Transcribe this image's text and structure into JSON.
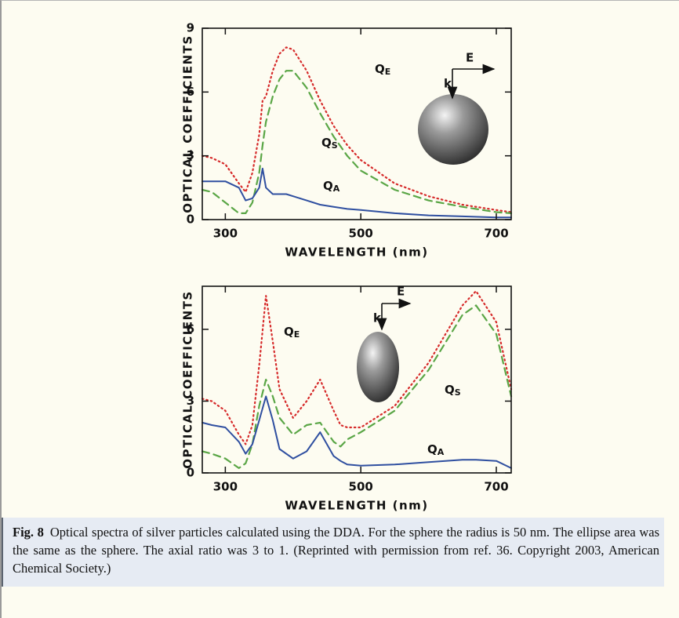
{
  "chart_data": [
    {
      "type": "line",
      "x": [
        266,
        280,
        300,
        320,
        330,
        340,
        350,
        355,
        360,
        370,
        380,
        390,
        400,
        420,
        440,
        460,
        480,
        500,
        550,
        600,
        650,
        700,
        722
      ],
      "series": [
        {
          "name": "QE",
          "color": "#d62a2a",
          "style": "dotted",
          "values": [
            3.0,
            2.9,
            2.6,
            1.7,
            1.3,
            2.2,
            4.0,
            5.6,
            5.8,
            7.0,
            7.8,
            8.1,
            8.0,
            7.0,
            5.6,
            4.4,
            3.5,
            2.8,
            1.7,
            1.1,
            0.7,
            0.45,
            0.35
          ]
        },
        {
          "name": "QS",
          "color": "#5aa646",
          "style": "dashed",
          "values": [
            1.4,
            1.3,
            0.8,
            0.3,
            0.3,
            0.8,
            2.2,
            3.5,
            4.6,
            5.8,
            6.6,
            7.0,
            7.0,
            6.2,
            5.0,
            3.9,
            3.0,
            2.3,
            1.4,
            0.9,
            0.6,
            0.35,
            0.3
          ]
        },
        {
          "name": "QA",
          "color": "#2f4fa0",
          "style": "solid",
          "values": [
            1.8,
            1.8,
            1.8,
            1.5,
            0.9,
            1.0,
            1.5,
            2.4,
            1.5,
            1.2,
            1.2,
            1.2,
            1.1,
            0.9,
            0.7,
            0.6,
            0.5,
            0.45,
            0.3,
            0.2,
            0.15,
            0.1,
            0.1
          ]
        }
      ],
      "xlim": [
        266,
        722
      ],
      "ylim": [
        0,
        9
      ],
      "xticks": [
        300,
        500,
        700
      ],
      "yticks": [
        0,
        3,
        6,
        9
      ],
      "x_label": "WAVELENGTH (nm)",
      "y_label": "OPTICAL COEFFICIENTS",
      "annotations": {
        "field": "E",
        "wavevector": "k"
      }
    },
    {
      "type": "line",
      "x": [
        266,
        280,
        300,
        320,
        330,
        340,
        350,
        360,
        370,
        380,
        400,
        420,
        440,
        460,
        470,
        480,
        500,
        550,
        600,
        650,
        670,
        700,
        722
      ],
      "series": [
        {
          "name": "QE",
          "color": "#d62a2a",
          "style": "dotted",
          "values": [
            3.1,
            3.0,
            2.6,
            1.6,
            1.2,
            2.0,
            4.5,
            7.4,
            5.5,
            3.5,
            2.3,
            3.0,
            3.9,
            2.6,
            2.0,
            1.9,
            1.9,
            2.8,
            4.6,
            7.0,
            7.6,
            6.3,
            3.5
          ]
        },
        {
          "name": "QS",
          "color": "#5aa646",
          "style": "dashed",
          "values": [
            0.9,
            0.8,
            0.6,
            0.2,
            0.4,
            1.2,
            2.8,
            3.9,
            3.2,
            2.3,
            1.6,
            2.0,
            2.1,
            1.3,
            1.1,
            1.4,
            1.7,
            2.6,
            4.3,
            6.6,
            7.0,
            5.8,
            3.2
          ]
        },
        {
          "name": "QA",
          "color": "#2f4fa0",
          "style": "solid",
          "values": [
            2.1,
            2.0,
            1.9,
            1.3,
            0.8,
            1.2,
            2.2,
            3.2,
            2.2,
            1.0,
            0.6,
            0.9,
            1.7,
            0.7,
            0.5,
            0.35,
            0.3,
            0.35,
            0.45,
            0.55,
            0.55,
            0.5,
            0.2
          ]
        }
      ],
      "xlim": [
        266,
        722
      ],
      "ylim": [
        0,
        7.8
      ],
      "xticks": [
        300,
        500,
        700
      ],
      "yticks": [
        0,
        3,
        6
      ],
      "x_label": "WAVELENGTH (nm)",
      "y_label": "OPTICAL COEFFICIENTS",
      "annotations": {
        "field": "E",
        "wavevector": "k"
      }
    }
  ],
  "caption": {
    "label": "Fig. 8",
    "text": "Optical spectra of silver particles calculated using the DDA. For the sphere the radius is 50 nm. The ellipse area was the same as the sphere. The axial ratio was 3 to 1. (Reprinted with permission from ref. 36. Copyright 2003, American Chemical Society.)"
  }
}
